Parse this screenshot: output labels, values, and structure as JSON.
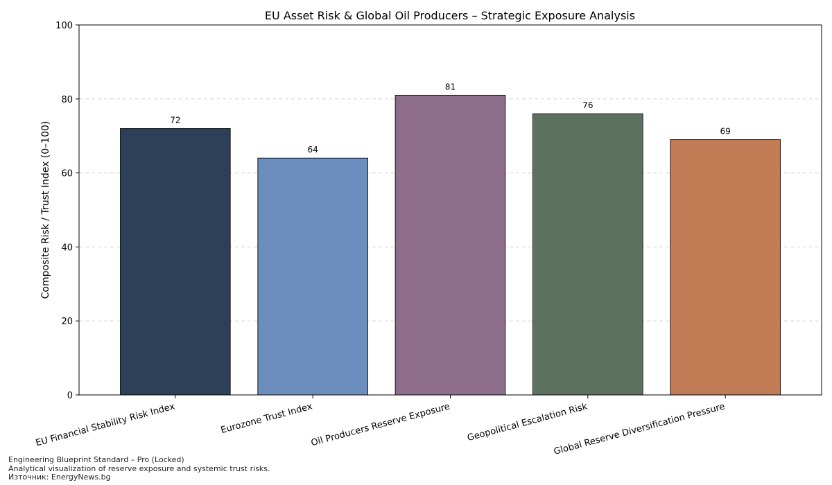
{
  "chart_data": {
    "type": "bar",
    "title": "EU Asset Risk & Global Oil Producers – Strategic Exposure Analysis",
    "xlabel": "",
    "ylabel": "Composite Risk / Trust Index (0–100)",
    "ylim": [
      0,
      100
    ],
    "yticks": [
      0,
      20,
      40,
      60,
      80,
      100
    ],
    "grid": "y-dashed",
    "categories": [
      "EU Financial Stability Risk Index",
      "Eurozone Trust Index",
      "Oil Producers Reserve Exposure",
      "Geopolitical Escalation Risk",
      "Global Reserve Diversification Pressure"
    ],
    "values": [
      72,
      64,
      81,
      76,
      69
    ],
    "data_labels": [
      "72",
      "64",
      "81",
      "76",
      "69"
    ],
    "colors": [
      "#2e3f58",
      "#6b8ebf",
      "#8e6d8a",
      "#5d7161",
      "#c17c55"
    ]
  },
  "footer": {
    "line1": "Engineering Blueprint Standard – Pro (Locked)",
    "line2": "Analytical visualization of reserve exposure and systemic trust risks.",
    "line3": "Източник: EnergyNews.bg"
  }
}
